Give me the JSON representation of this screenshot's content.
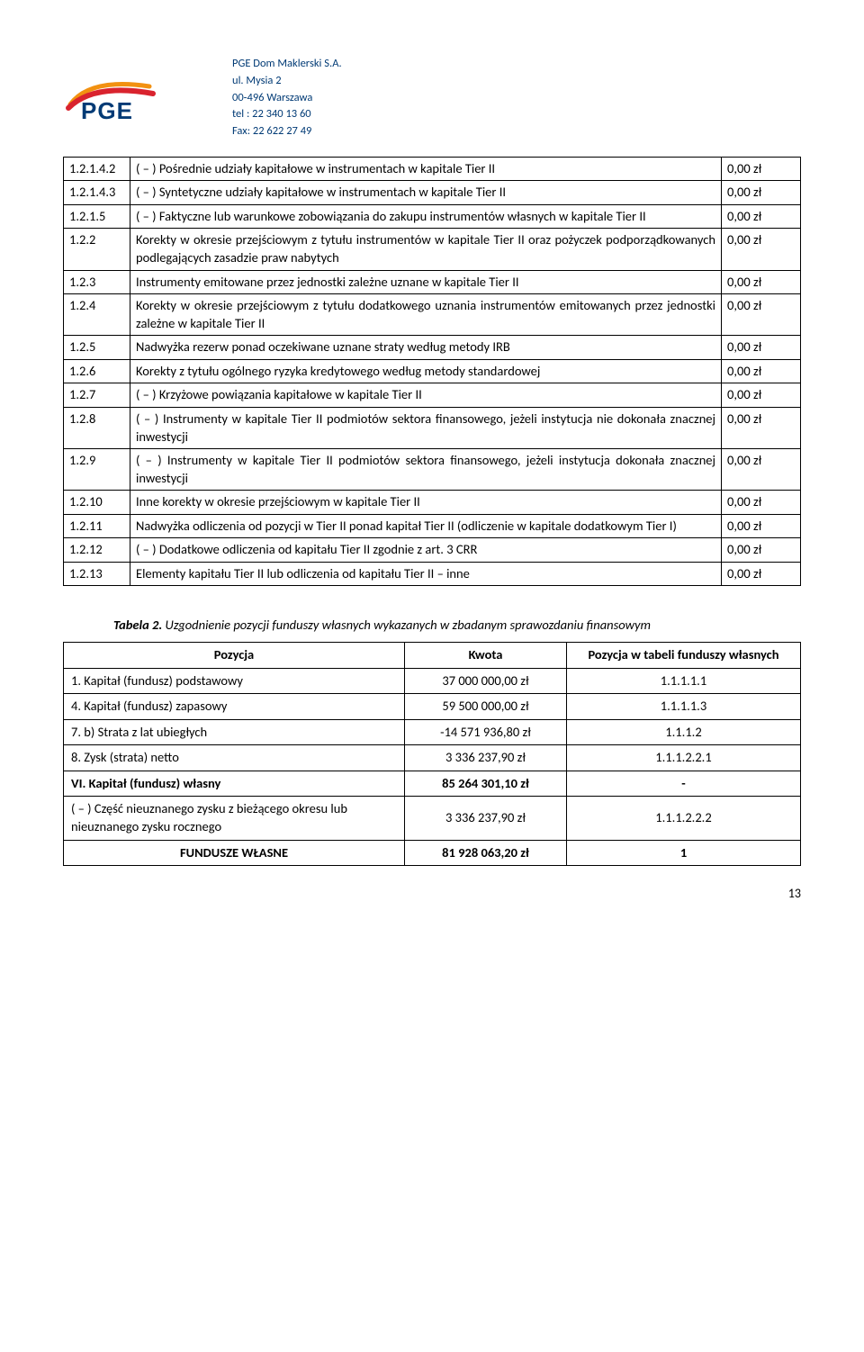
{
  "letterhead": {
    "company": "PGE Dom Maklerski S.A.",
    "street": "ul. Mysia 2",
    "city": "00-496 Warszawa",
    "tel": "tel : 22 340 13 60",
    "fax": "Fax: 22 622 27 49"
  },
  "table1": {
    "rows": [
      {
        "num": "1.2.1.4.2",
        "desc": "( – ) Pośrednie udziały kapitałowe w instrumentach w kapitale Tier II",
        "amt": "0,00 zł"
      },
      {
        "num": "1.2.1.4.3",
        "desc": "( – ) Syntetyczne udziały kapitałowe w instrumentach w kapitale Tier II",
        "amt": "0,00 zł"
      },
      {
        "num": "1.2.1.5",
        "desc": "( – ) Faktyczne lub warunkowe zobowiązania do zakupu instrumentów własnych w kapitale Tier II",
        "amt": "0,00 zł"
      },
      {
        "num": "1.2.2",
        "desc": "Korekty w okresie przejściowym z tytułu instrumentów w kapitale Tier II oraz pożyczek podporządkowanych podlegających zasadzie praw nabytych",
        "amt": "0,00 zł"
      },
      {
        "num": "1.2.3",
        "desc": "Instrumenty emitowane przez jednostki zależne uznane w kapitale Tier II",
        "amt": "0,00 zł"
      },
      {
        "num": "1.2.4",
        "desc": "Korekty w okresie przejściowym z tytułu dodatkowego uznania instrumentów emitowanych przez jednostki zależne w kapitale Tier II",
        "amt": "0,00 zł"
      },
      {
        "num": "1.2.5",
        "desc": "Nadwyżka rezerw ponad oczekiwane uznane straty według metody IRB",
        "amt": "0,00 zł"
      },
      {
        "num": "1.2.6",
        "desc": "Korekty z tytułu ogólnego ryzyka kredytowego według metody standardowej",
        "amt": "0,00 zł"
      },
      {
        "num": "1.2.7",
        "desc": "( – ) Krzyżowe powiązania kapitałowe w kapitale Tier II",
        "amt": "0,00 zł"
      },
      {
        "num": "1.2.8",
        "desc": "( – ) Instrumenty w kapitale Tier II podmiotów sektora finansowego, jeżeli instytucja nie dokonała znacznej inwestycji",
        "amt": "0,00 zł"
      },
      {
        "num": "1.2.9",
        "desc": "( – ) Instrumenty w kapitale Tier II podmiotów sektora finansowego, jeżeli instytucja dokonała znacznej inwestycji",
        "amt": "0,00 zł"
      },
      {
        "num": "1.2.10",
        "desc": "Inne korekty w okresie przejściowym w kapitale Tier II",
        "amt": "0,00 zł"
      },
      {
        "num": "1.2.11",
        "desc": "Nadwyżka odliczenia od pozycji w Tier II ponad kapitał Tier II (odliczenie w kapitale dodatkowym Tier I)",
        "amt": "0,00 zł"
      },
      {
        "num": "1.2.12",
        "desc": "( – ) Dodatkowe odliczenia od kapitału Tier II zgodnie z art. 3 CRR",
        "amt": "0,00 zł"
      },
      {
        "num": "1.2.13",
        "desc": "Elementy kapitału Tier II lub odliczenia od kapitału Tier II – inne",
        "amt": "0,00 zł"
      }
    ]
  },
  "caption": {
    "label": "Tabela 2.",
    "text": " Uzgodnienie pozycji funduszy własnych wykazanych w zbadanym sprawozdaniu finansowym"
  },
  "table2": {
    "headers": {
      "c1": "Pozycja",
      "c2": "Kwota",
      "c3": "Pozycja w tabeli funduszy własnych"
    },
    "rows": [
      {
        "c1": "1. Kapitał (fundusz) podstawowy",
        "c2": "37 000 000,00 zł",
        "c3": "1.1.1.1.1",
        "bold": false
      },
      {
        "c1": "4. Kapitał (fundusz) zapasowy",
        "c2": "59 500 000,00 zł",
        "c3": "1.1.1.1.3",
        "bold": false
      },
      {
        "c1": "7. b) Strata z lat ubiegłych",
        "c2": "-14 571 936,80 zł",
        "c3": "1.1.1.2",
        "bold": false
      },
      {
        "c1": "8. Zysk (strata) netto",
        "c2": "3 336 237,90 zł",
        "c3": "1.1.1.2.2.1",
        "bold": false
      },
      {
        "c1": "VI. Kapitał (fundusz) własny",
        "c2": "85 264 301,10 zł",
        "c3": "-",
        "bold": true
      },
      {
        "c1": "( – ) Część nieuznanego zysku z bieżącego okresu lub nieuznanego zysku rocznego",
        "c2": "3 336 237,90 zł",
        "c3": "1.1.1.2.2.2",
        "bold": false,
        "twoline": true
      },
      {
        "c1": "FUNDUSZE WŁASNE",
        "c2": "81 928 063,20 zł",
        "c3": "1",
        "bold": true
      }
    ]
  },
  "pagenum": "13",
  "colors": {
    "brand_blue": "#003a75",
    "brand_orange": "#f29111",
    "brand_red": "#d9232e"
  }
}
